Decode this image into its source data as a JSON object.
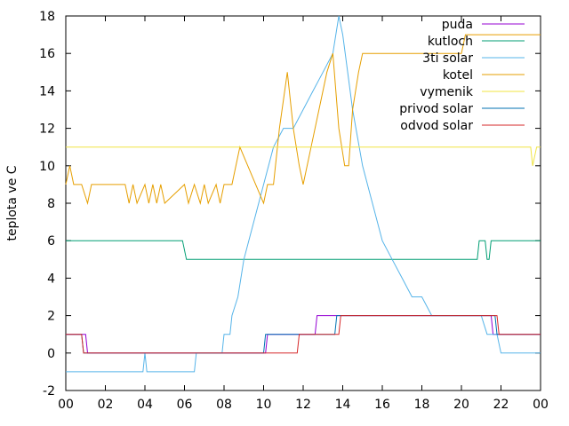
{
  "chart_data": {
    "type": "line",
    "xlabel": "",
    "ylabel": "teplota ve C",
    "xlim": [
      0,
      24
    ],
    "ylim": [
      -2,
      18
    ],
    "x_ticks": [
      "00",
      "02",
      "04",
      "06",
      "08",
      "10",
      "12",
      "14",
      "16",
      "18",
      "20",
      "22",
      "00"
    ],
    "y_ticks": [
      -2,
      0,
      2,
      4,
      6,
      8,
      10,
      12,
      14,
      16,
      18
    ],
    "grid": false,
    "legend_position": "top-right",
    "series": [
      {
        "name": "puda",
        "color": "#9400d3",
        "x": [
          0,
          1.0,
          1.1,
          10.1,
          10.2,
          11.5,
          11.6,
          12.6,
          12.7,
          13.5,
          13.6,
          21.5,
          21.6,
          24
        ],
        "y": [
          1,
          1,
          0,
          0,
          1,
          1,
          1,
          1,
          2,
          2,
          2,
          2,
          1,
          1
        ]
      },
      {
        "name": "kutloch",
        "color": "#009e73",
        "x": [
          0,
          5.9,
          6.1,
          20.8,
          20.9,
          21.2,
          21.3,
          21.4,
          21.5,
          24
        ],
        "y": [
          6,
          6,
          5,
          5,
          6,
          6,
          5,
          5,
          6,
          6
        ]
      },
      {
        "name": "3ti solar",
        "color": "#56b4e9",
        "x": [
          0,
          3.9,
          4.0,
          4.1,
          6.5,
          6.6,
          7.9,
          8.0,
          8.3,
          8.4,
          8.7,
          9.0,
          9.5,
          10.0,
          10.5,
          11.0,
          11.5,
          12.0,
          12.5,
          13.0,
          13.5,
          13.8,
          14.0,
          14.5,
          15.0,
          15.5,
          16.0,
          16.5,
          17.0,
          17.5,
          18.0,
          18.5,
          19.0,
          19.5,
          20.0,
          20.5,
          21.0,
          21.3,
          21.5,
          21.8,
          22.0,
          24
        ],
        "y": [
          -1,
          -1,
          0,
          -1,
          -1,
          0,
          0,
          1,
          1,
          2,
          3,
          5,
          7,
          9,
          11,
          12,
          12,
          13,
          14,
          15,
          16,
          18,
          17,
          13,
          10,
          8,
          6,
          5,
          4,
          3,
          3,
          2,
          2,
          2,
          2,
          2,
          2,
          1,
          1,
          1,
          0,
          0
        ]
      },
      {
        "name": "kotel",
        "color": "#e69f00",
        "x": [
          0,
          0.2,
          0.4,
          0.8,
          1.1,
          1.3,
          3.0,
          3.2,
          3.4,
          3.6,
          4.0,
          4.2,
          4.4,
          4.6,
          4.8,
          5.0,
          6.0,
          6.2,
          6.5,
          6.8,
          7.0,
          7.2,
          7.6,
          7.8,
          8.0,
          8.4,
          8.8,
          9.2,
          9.6,
          10.0,
          10.2,
          10.5,
          10.8,
          11.2,
          11.5,
          11.8,
          12.0,
          12.4,
          12.8,
          13.2,
          13.5,
          13.8,
          14.1,
          14.3,
          14.5,
          14.8,
          15.0,
          15.2,
          20.0,
          20.2,
          24
        ],
        "y": [
          9,
          10,
          9,
          9,
          8,
          9,
          9,
          8,
          9,
          8,
          9,
          8,
          9,
          8,
          9,
          8,
          9,
          8,
          9,
          8,
          9,
          8,
          9,
          8,
          9,
          9,
          11,
          10,
          9,
          8,
          9,
          9,
          12,
          15,
          12,
          10,
          9,
          11,
          13,
          15,
          16,
          12,
          10,
          10,
          13,
          15,
          16,
          16,
          16,
          17,
          17
        ]
      },
      {
        "name": "vymenik",
        "color": "#f0e442",
        "x": [
          0,
          23.5,
          23.6,
          23.8,
          24
        ],
        "y": [
          11,
          11,
          10,
          11,
          11
        ]
      },
      {
        "name": "privod solar",
        "color": "#0072b2",
        "x": [
          0,
          0.8,
          0.9,
          10.0,
          10.1,
          11.7,
          11.8,
          13.6,
          13.7,
          21.7,
          21.8,
          24
        ],
        "y": [
          1,
          1,
          0,
          0,
          1,
          1,
          1,
          1,
          2,
          2,
          1,
          1
        ]
      },
      {
        "name": "odvod solar",
        "color": "#d62728",
        "x": [
          0,
          0.8,
          0.9,
          11.7,
          11.8,
          13.8,
          13.9,
          21.8,
          21.9,
          24
        ],
        "y": [
          1,
          1,
          0,
          0,
          1,
          1,
          2,
          2,
          1,
          1
        ]
      }
    ]
  }
}
